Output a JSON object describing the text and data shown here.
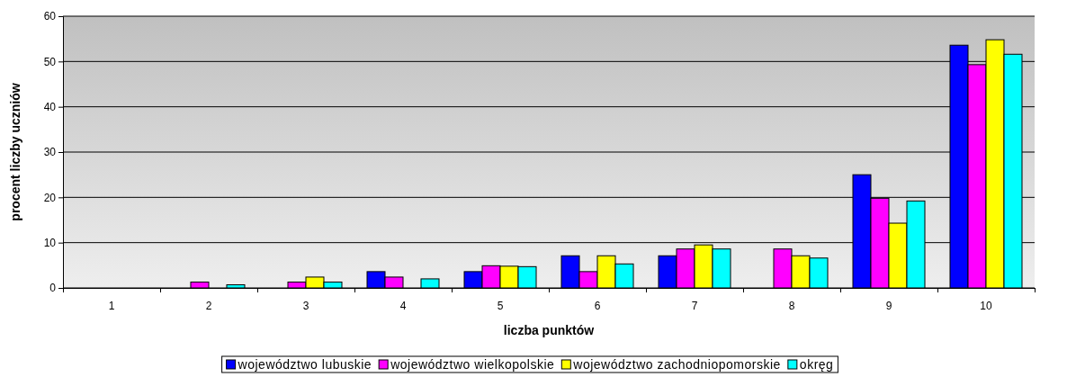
{
  "chart_data": {
    "type": "bar",
    "xlabel": "liczba punktów",
    "ylabel": "procent liczby uczniów",
    "categories": [
      "1",
      "2",
      "3",
      "4",
      "5",
      "6",
      "7",
      "8",
      "9",
      "10"
    ],
    "series": [
      {
        "name": "województwo lubuskie",
        "color": "#0000ff",
        "values": [
          0,
          0,
          0,
          3.6,
          3.6,
          7.1,
          7.1,
          0,
          25,
          53.6
        ]
      },
      {
        "name": "województwo wielkopolskie",
        "color": "#ff00ff",
        "values": [
          0,
          1.3,
          1.3,
          2.4,
          4.9,
          3.6,
          8.6,
          8.6,
          19.8,
          49.3
        ]
      },
      {
        "name": "województwo zachodniopomorskie",
        "color": "#ffff00",
        "values": [
          0,
          0,
          2.4,
          0,
          4.8,
          7.1,
          9.5,
          7.1,
          14.3,
          54.8
        ]
      },
      {
        "name": "okręg",
        "color": "#00ffff",
        "values": [
          0,
          0.7,
          1.3,
          2.0,
          4.7,
          5.3,
          8.6,
          6.6,
          19.2,
          51.6
        ]
      }
    ],
    "ylim": [
      0,
      60
    ],
    "yticks": [
      0,
      10,
      20,
      30,
      40,
      50,
      60
    ],
    "grid": "y",
    "legend": "bottom"
  }
}
